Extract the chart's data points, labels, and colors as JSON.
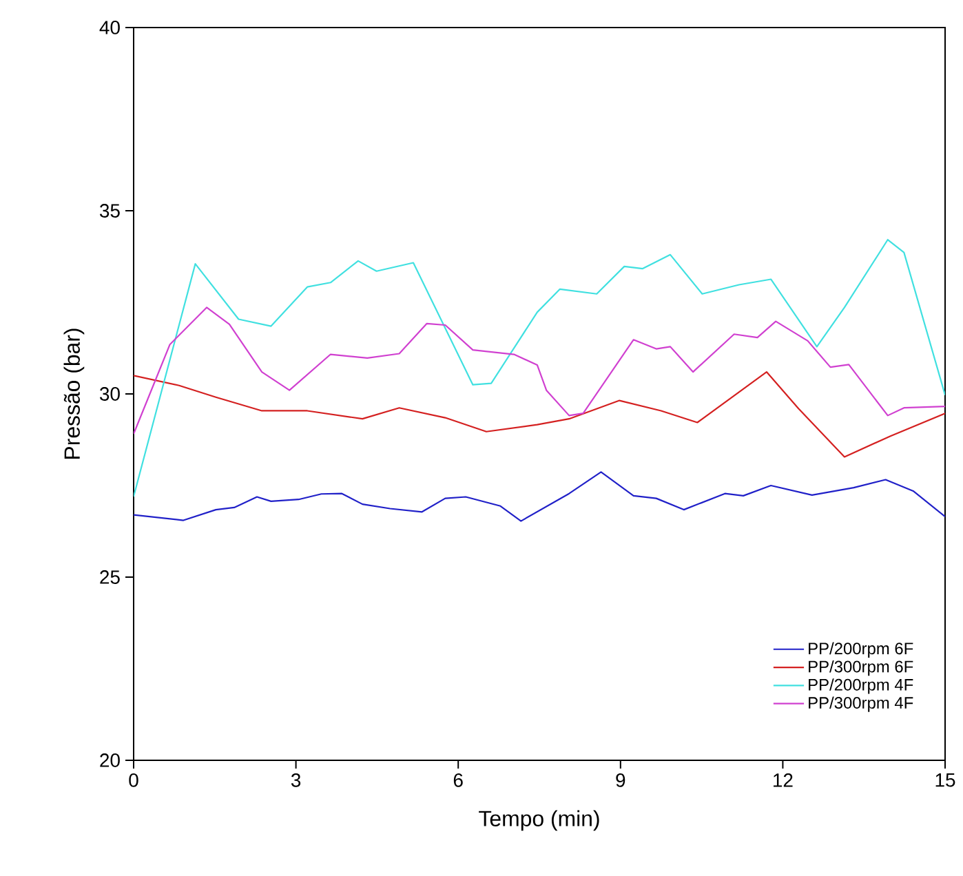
{
  "chart_data": {
    "type": "line",
    "xlabel": "Tempo (min)",
    "ylabel": "Pressão (bar)",
    "xlim": [
      0,
      15
    ],
    "xticks": [
      0,
      3,
      6,
      9,
      12,
      15
    ],
    "ylim": [
      20,
      40
    ],
    "yticks": [
      20,
      25,
      30,
      35,
      40
    ],
    "grid": false,
    "legend": "bottom right",
    "marker": "none",
    "line_style": "solid",
    "series": [
      {
        "name": "PP/200rpm 6F",
        "color": "#2020c8",
        "x": [
          0,
          0.92,
          1.52,
          1.86,
          2.28,
          2.54,
          3.05,
          3.47,
          3.85,
          4.23,
          4.74,
          5.33,
          5.76,
          6.14,
          6.78,
          7.16,
          8.05,
          8.64,
          9.24,
          9.66,
          10.17,
          10.93,
          11.27,
          11.78,
          12.54,
          13.31,
          13.9,
          14.41,
          15
        ],
        "values": [
          26.7,
          26.55,
          26.84,
          26.9,
          27.19,
          27.07,
          27.12,
          27.27,
          27.28,
          26.99,
          26.87,
          26.78,
          27.15,
          27.19,
          26.94,
          26.53,
          27.28,
          27.87,
          27.22,
          27.15,
          26.84,
          27.28,
          27.22,
          27.5,
          27.24,
          27.44,
          27.66,
          27.35,
          26.65
        ]
      },
      {
        "name": "PP/300rpm 6F",
        "color": "#d42020",
        "x": [
          0,
          0.84,
          1.52,
          2.37,
          3.21,
          4.23,
          4.91,
          5.76,
          6.52,
          7.46,
          8.05,
          8.98,
          9.75,
          10.42,
          11.7,
          12.29,
          13.14,
          13.99,
          15
        ],
        "values": [
          30.5,
          30.23,
          29.91,
          29.54,
          29.54,
          29.32,
          29.62,
          29.35,
          28.97,
          29.16,
          29.32,
          29.82,
          29.54,
          29.22,
          30.6,
          29.6,
          28.28,
          28.85,
          29.47
        ]
      },
      {
        "name": "PP/200rpm 4F",
        "color": "#40e0e0",
        "x": [
          0,
          1.14,
          1.94,
          2.54,
          3.21,
          3.64,
          4.15,
          4.49,
          5.17,
          6.27,
          6.61,
          7.46,
          7.88,
          8.56,
          9.07,
          9.41,
          9.92,
          10.51,
          11.19,
          11.78,
          12.63,
          13.14,
          13.94,
          14.24,
          15
        ],
        "values": [
          27.2,
          33.55,
          32.04,
          31.85,
          32.92,
          33.04,
          33.63,
          33.35,
          33.58,
          30.25,
          30.29,
          32.23,
          32.86,
          32.73,
          33.48,
          33.42,
          33.8,
          32.73,
          32.98,
          33.13,
          31.29,
          32.36,
          34.21,
          33.86,
          29.97
        ]
      },
      {
        "name": "PP/300rpm 4F",
        "color": "#d040d0",
        "x": [
          0,
          0.67,
          1.35,
          1.77,
          2.37,
          2.88,
          3.64,
          4.32,
          4.91,
          5.42,
          5.76,
          6.27,
          7.03,
          7.46,
          7.63,
          8.05,
          8.31,
          9.24,
          9.66,
          9.92,
          10.34,
          11.1,
          11.53,
          11.87,
          12.46,
          12.88,
          13.22,
          13.94,
          14.24,
          15
        ],
        "values": [
          28.91,
          31.35,
          32.36,
          31.9,
          30.6,
          30.1,
          31.08,
          30.98,
          31.1,
          31.92,
          31.88,
          31.2,
          31.08,
          30.79,
          30.1,
          29.41,
          29.47,
          31.48,
          31.23,
          31.29,
          30.6,
          31.63,
          31.54,
          31.98,
          31.45,
          30.73,
          30.8,
          29.41,
          29.62,
          29.66
        ]
      }
    ]
  }
}
